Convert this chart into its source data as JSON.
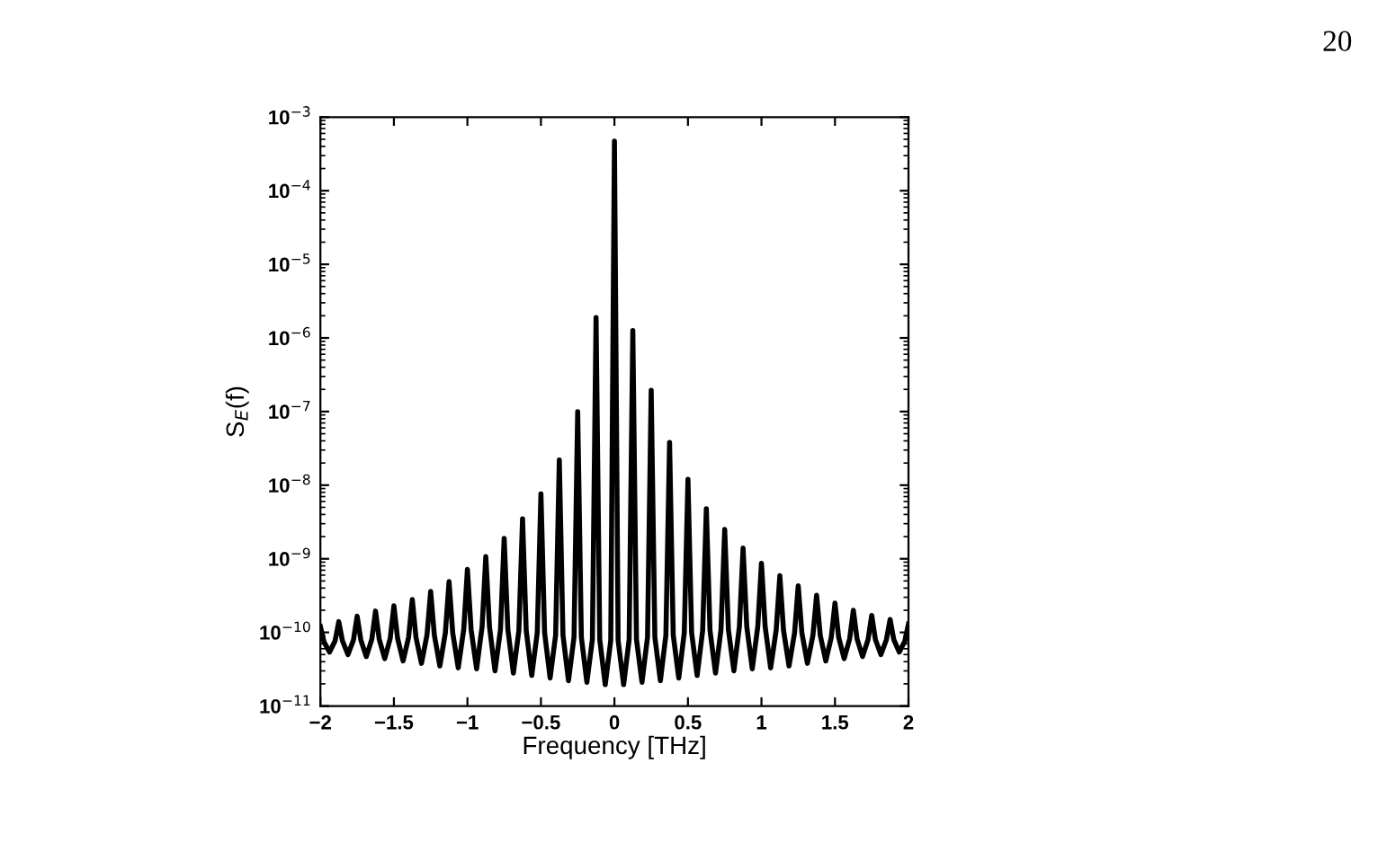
{
  "chart_data": {
    "type": "line",
    "xlabel": "Frequency [THz]",
    "ylabel": "S$_{E}$(f)",
    "log": "y",
    "annotations": [
      "20"
    ],
    "series": [
      {
        "color": "#000000",
        "x": [
          -2.0,
          -1.975,
          -1.9375,
          -1.9,
          -1.875,
          -1.85,
          -1.8125,
          -1.775,
          -1.75,
          -1.725,
          -1.6875,
          -1.65,
          -1.625,
          -1.6,
          -1.5625,
          -1.525,
          -1.5,
          -1.475,
          -1.4375,
          -1.4,
          -1.375,
          -1.35,
          -1.3125,
          -1.275,
          -1.25,
          -1.225,
          -1.1875,
          -1.15,
          -1.125,
          -1.1,
          -1.0625,
          -1.025,
          -1.0,
          -0.975,
          -0.9375,
          -0.9,
          -0.875,
          -0.85,
          -0.8125,
          -0.775,
          -0.75,
          -0.725,
          -0.6875,
          -0.65,
          -0.625,
          -0.6,
          -0.5625,
          -0.525,
          -0.5,
          -0.475,
          -0.4375,
          -0.4,
          -0.375,
          -0.35,
          -0.3125,
          -0.275,
          -0.25,
          -0.225,
          -0.1875,
          -0.15,
          -0.125,
          -0.1,
          -0.0625,
          -0.025,
          0.0,
          0.025,
          0.0625,
          0.1,
          0.125,
          0.15,
          0.1875,
          0.225,
          0.25,
          0.275,
          0.3125,
          0.35,
          0.375,
          0.4,
          0.4375,
          0.475,
          0.5,
          0.525,
          0.5625,
          0.6,
          0.625,
          0.65,
          0.6875,
          0.725,
          0.75,
          0.775,
          0.8125,
          0.85,
          0.875,
          0.9,
          0.9375,
          0.975,
          1.0,
          1.025,
          1.0625,
          1.1,
          1.125,
          1.15,
          1.1875,
          1.225,
          1.25,
          1.275,
          1.3125,
          1.35,
          1.375,
          1.4,
          1.4375,
          1.475,
          1.5,
          1.525,
          1.5625,
          1.6,
          1.625,
          1.65,
          1.6875,
          1.725,
          1.75,
          1.775,
          1.8125,
          1.85,
          1.875,
          1.9,
          1.9375,
          1.975,
          2.0
        ],
        "values": [
          1.2e-10,
          7.4e-11,
          5.4e-11,
          7.7e-11,
          1.4e-10,
          7.7e-11,
          5e-11,
          7.9e-11,
          1.66e-10,
          7.9e-11,
          4.7e-11,
          8.1e-11,
          1.95e-10,
          8.1e-11,
          4.4e-11,
          8.3e-11,
          2.3e-10,
          8.3e-11,
          4.1e-11,
          8.6e-11,
          2.8e-10,
          8.6e-11,
          3.8e-11,
          9.2e-11,
          3.6e-10,
          9.2e-11,
          3.5e-11,
          9.9e-11,
          4.9e-10,
          9.9e-11,
          3.3e-11,
          1.1e-10,
          7.2e-10,
          1.1e-10,
          3.2e-11,
          1.2e-10,
          1.07e-09,
          1.2e-10,
          3e-11,
          1.1e-10,
          1.9e-09,
          1.1e-10,
          2.8e-11,
          1.06e-10,
          3.5e-09,
          1.06e-10,
          2.6e-11,
          9.9e-11,
          7.6e-09,
          9.9e-11,
          2.4e-11,
          9.2e-11,
          2.2e-08,
          9.2e-11,
          2.2e-11,
          8.6e-11,
          1e-07,
          8.6e-11,
          2.1e-11,
          8e-11,
          1.9e-06,
          8e-11,
          1.95e-11,
          7.8e-11,
          0.00047,
          7.8e-11,
          1.95e-11,
          8e-11,
          1.26e-06,
          8e-11,
          2.1e-11,
          8.6e-11,
          1.95e-07,
          8.6e-11,
          2.2e-11,
          9.2e-11,
          3.8e-08,
          9.2e-11,
          2.4e-11,
          9.9e-11,
          1.2e-08,
          9.9e-11,
          2.6e-11,
          1.06e-10,
          4.8e-09,
          1.06e-10,
          2.8e-11,
          1.1e-10,
          2.5e-09,
          1.1e-10,
          3e-11,
          1.2e-10,
          1.4e-09,
          1.2e-10,
          3.2e-11,
          1.2e-10,
          8.7e-10,
          1.2e-10,
          3.3e-11,
          1.07e-10,
          5.9e-10,
          1.07e-10,
          3.5e-11,
          9.8e-11,
          4.3e-10,
          9.8e-11,
          3.8e-11,
          9.1e-11,
          3.2e-10,
          9.1e-11,
          4.1e-11,
          8.6e-11,
          2.5e-10,
          8.6e-11,
          4.4e-11,
          8.2e-11,
          2e-10,
          8.2e-11,
          4.7e-11,
          8e-11,
          1.7e-10,
          8e-11,
          5e-11,
          8e-11,
          1.5e-10,
          8e-11,
          5.4e-11,
          7.6e-11,
          1.3e-10
        ]
      }
    ],
    "xlim": [
      -2,
      2
    ],
    "xticks": [
      {
        "value": -2,
        "label": "−2"
      },
      {
        "value": -1.5,
        "label": "−1.5"
      },
      {
        "value": -1,
        "label": "−1"
      },
      {
        "value": -0.5,
        "label": "−0.5"
      },
      0,
      0.5,
      1,
      1.5,
      2
    ],
    "ylim": [
      1e-11,
      0.001
    ],
    "yticks": [
      {
        "value": 1e-11,
        "label": "10$^{−11}$"
      },
      {
        "value": 1e-10,
        "label": "10$^{−10}$"
      },
      {
        "value": 1e-09,
        "label": "10$^{−9}$"
      },
      {
        "value": 1e-08,
        "label": "10$^{−8}$"
      },
      {
        "value": 1e-07,
        "label": "10$^{−7}$"
      },
      {
        "value": 1e-06,
        "label": "10$^{−6}$"
      },
      {
        "value": 1e-05,
        "label": "10$^{−5}$"
      },
      {
        "value": 0.0001,
        "label": "10$^{−4}$"
      },
      {
        "value": 0.001,
        "label": "10$^{−3}$"
      }
    ],
    "grid": false,
    "legend": false,
    "marker": "none",
    "line_style": "solid"
  }
}
